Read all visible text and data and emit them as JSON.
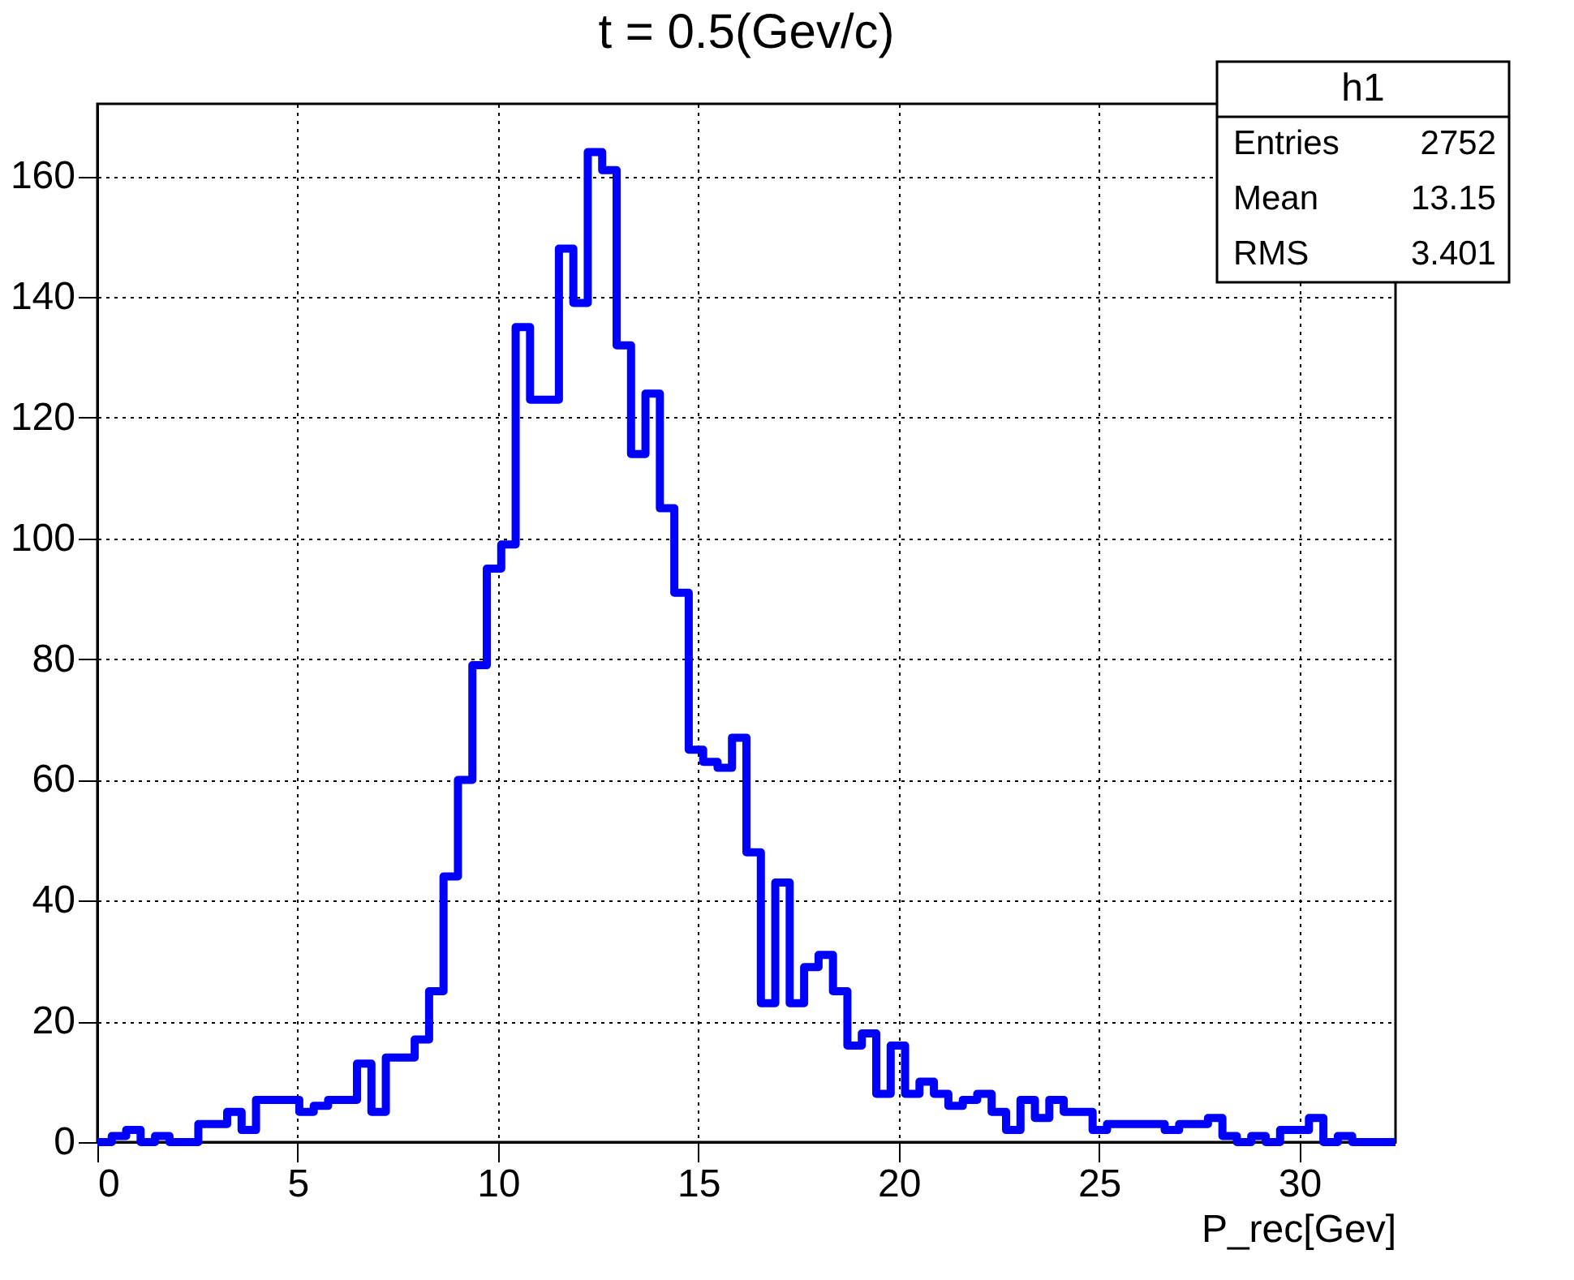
{
  "chart_data": {
    "type": "histogram",
    "title": "t = 0.5(Gev/c)",
    "xlabel": "P_rec[Gev]",
    "color": "#0000ff",
    "bins": [
      0,
      0.36,
      0.72,
      1.08,
      1.44,
      1.8,
      2.16,
      2.52,
      2.88,
      3.24,
      3.6,
      3.96,
      4.32,
      4.68,
      5.04,
      5.4,
      5.76,
      6.12,
      6.48,
      6.84,
      7.2,
      7.56,
      7.92,
      8.28,
      8.64,
      9,
      9.36,
      9.72,
      10.08,
      10.44,
      10.8,
      11.16,
      11.52,
      11.88,
      12.24,
      12.6,
      12.96,
      13.32,
      13.68,
      14.04,
      14.4,
      14.76,
      15.12,
      15.48,
      15.84,
      16.2,
      16.56,
      16.92,
      17.28,
      17.64,
      18,
      18.36,
      18.72,
      19.08,
      19.44,
      19.8,
      20.16,
      20.52,
      20.88,
      21.24,
      21.6,
      21.96,
      22.32,
      22.68,
      23.04,
      23.4,
      23.76,
      24.12,
      24.48,
      24.84,
      25.2,
      25.56,
      25.92,
      26.28,
      26.64,
      27,
      27.36,
      27.72,
      28.08,
      28.44,
      28.8,
      29.16,
      29.52,
      29.88,
      30.24,
      30.6,
      30.96,
      31.32,
      31.68,
      32.04,
      32.4
    ],
    "values": [
      0,
      1,
      2,
      0,
      1,
      0,
      0,
      3,
      3,
      5,
      2,
      7,
      7,
      7,
      5,
      6,
      7,
      7,
      13,
      5,
      14,
      14,
      17,
      25,
      44,
      60,
      79,
      95,
      99,
      135,
      123,
      123,
      148,
      139,
      164,
      161,
      132,
      114,
      124,
      105,
      91,
      65,
      63,
      62,
      67,
      48,
      23,
      43,
      23,
      29,
      31,
      25,
      16,
      18,
      8,
      16,
      8,
      10,
      8,
      6,
      7,
      8,
      5,
      2,
      7,
      4,
      7,
      5,
      5,
      2,
      3,
      3,
      3,
      3,
      2,
      3,
      3,
      4,
      1,
      0,
      1,
      0,
      2,
      2,
      4,
      0,
      1,
      0,
      0,
      0
    ],
    "xlim": [
      0,
      32.4
    ],
    "xticks": [
      0,
      5,
      10,
      15,
      20,
      25,
      30
    ],
    "ylim": [
      0,
      172
    ],
    "yticks": [
      0,
      20,
      40,
      60,
      80,
      100,
      120,
      140,
      160
    ],
    "grid": true,
    "annotations": [
      "h1",
      "Entries 2752",
      "Mean 13.15",
      "RMS 3.401"
    ]
  }
}
